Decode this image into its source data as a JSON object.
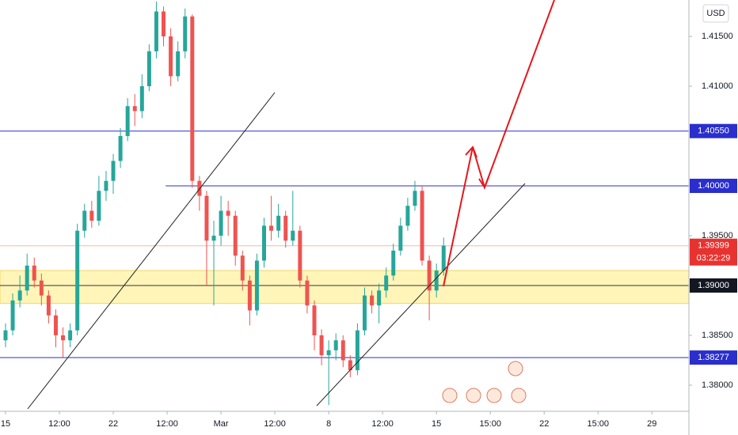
{
  "chart_data": {
    "type": "candlestick",
    "currency": "USD",
    "up_color": "#26a69a",
    "down_color": "#ef5350",
    "open": [
      1.3845,
      1.3855,
      1.3885,
      1.3895,
      1.392,
      1.3905,
      1.389,
      1.387,
      1.385,
      1.3845,
      1.3855,
      1.3955,
      1.3975,
      1.3965,
      1.3995,
      1.4005,
      1.4025,
      1.405,
      1.408,
      1.4075,
      1.41,
      1.4135,
      1.4175,
      1.415,
      1.411,
      1.4135,
      1.417,
      1.4005,
      1.399,
      1.3945,
      1.395,
      1.3975,
      1.397,
      1.393,
      1.3905,
      1.3875,
      1.3925,
      1.396,
      1.3955,
      1.397,
      1.3945,
      1.3955,
      1.3905,
      1.388,
      1.385,
      1.383,
      1.3835,
      1.3845,
      1.3825,
      1.3815,
      1.3855,
      1.389,
      1.388,
      1.3895,
      1.391,
      1.3935,
      1.396,
      1.398,
      1.3995,
      1.3925,
      1.3895,
      1.3915
    ],
    "high": [
      1.3862,
      1.3892,
      1.391,
      1.3932,
      1.3928,
      1.3912,
      1.3895,
      1.3876,
      1.3858,
      1.3862,
      1.3962,
      1.3982,
      1.3985,
      1.401,
      1.4015,
      1.4032,
      1.4058,
      1.4088,
      1.4092,
      1.4112,
      1.4142,
      1.4185,
      1.418,
      1.4158,
      1.4145,
      1.4178,
      1.4172,
      1.401,
      1.3995,
      1.3965,
      1.399,
      1.3985,
      1.3975,
      1.3935,
      1.391,
      1.3932,
      1.3968,
      1.399,
      1.3982,
      1.3975,
      1.3995,
      1.396,
      1.391,
      1.3885,
      1.3856,
      1.3845,
      1.3852,
      1.385,
      1.383,
      1.3862,
      1.3898,
      1.3895,
      1.3902,
      1.3918,
      1.3942,
      1.3968,
      1.3988,
      1.4005,
      1.4,
      1.393,
      1.3922,
      1.3948
    ],
    "low": [
      1.3838,
      1.385,
      1.3878,
      1.389,
      1.3898,
      1.388,
      1.3862,
      1.3838,
      1.3828,
      1.3838,
      1.385,
      1.3948,
      1.3958,
      1.396,
      1.3985,
      1.3992,
      1.4018,
      1.4045,
      1.406,
      1.4068,
      1.4095,
      1.4128,
      1.414,
      1.41,
      1.4105,
      1.4128,
      1.3998,
      1.3975,
      1.39,
      1.388,
      1.394,
      1.395,
      1.392,
      1.3895,
      1.386,
      1.387,
      1.3918,
      1.3945,
      1.3948,
      1.3938,
      1.394,
      1.3898,
      1.3872,
      1.3835,
      1.382,
      1.378,
      1.3825,
      1.3818,
      1.3808,
      1.381,
      1.385,
      1.3872,
      1.3862,
      1.3888,
      1.3905,
      1.393,
      1.3955,
      1.3975,
      1.392,
      1.3865,
      1.3888,
      1.391
    ],
    "close": [
      1.3855,
      1.3885,
      1.3895,
      1.392,
      1.3905,
      1.389,
      1.387,
      1.385,
      1.3845,
      1.3855,
      1.3955,
      1.3975,
      1.3965,
      1.3995,
      1.4005,
      1.4025,
      1.405,
      1.408,
      1.4075,
      1.41,
      1.4135,
      1.4175,
      1.415,
      1.411,
      1.4135,
      1.417,
      1.4005,
      1.399,
      1.3945,
      1.395,
      1.3975,
      1.397,
      1.393,
      1.3905,
      1.3875,
      1.3925,
      1.396,
      1.3955,
      1.397,
      1.3945,
      1.3955,
      1.3905,
      1.388,
      1.385,
      1.383,
      1.3835,
      1.3845,
      1.3825,
      1.3815,
      1.3855,
      1.389,
      1.388,
      1.3895,
      1.391,
      1.3935,
      1.396,
      1.398,
      1.3995,
      1.3925,
      1.3895,
      1.3915,
      1.394
    ],
    "xlim": [
      -0.77,
      95.15
    ],
    "xticks": [
      {
        "value": 0,
        "label": "15"
      },
      {
        "value": 7.5,
        "label": "12:00"
      },
      {
        "value": 15,
        "label": "22"
      },
      {
        "value": 22.5,
        "label": "12:00"
      },
      {
        "value": 30,
        "label": "Mar"
      },
      {
        "value": 37.5,
        "label": "12:00"
      },
      {
        "value": 45,
        "label": "8"
      },
      {
        "value": 52.5,
        "label": "12:00"
      },
      {
        "value": 60,
        "label": "15"
      },
      {
        "value": 67.5,
        "label": "15:00"
      },
      {
        "value": 75,
        "label": "22"
      },
      {
        "value": 82.5,
        "label": "15:00"
      },
      {
        "value": 90,
        "label": "29"
      }
    ],
    "ylim": [
      1.37738,
      1.41865
    ],
    "yticks": [
      {
        "value": 1.38,
        "label": "1.38000"
      },
      {
        "value": 1.385,
        "label": "1.38500"
      },
      {
        "value": 1.395,
        "label": "1.39500"
      },
      {
        "value": 1.41,
        "label": "1.41000"
      },
      {
        "value": 1.415,
        "label": "1.41500"
      }
    ],
    "zone": [
      1.3882,
      1.3915
    ],
    "zone_color": "#fff5b8",
    "price_lines": [
      {
        "value": 1.4055,
        "label": "1.40550",
        "color": "#2a2ecc",
        "box": "#2a2ecc",
        "from_x": -0.77
      },
      {
        "value": 1.4,
        "label": "1.40000",
        "color": "#2a2ecc",
        "box": "#2a2ecc",
        "from_x": 22.3
      },
      {
        "value": 1.39399,
        "label": "1.39399",
        "color": "#f5b8a8",
        "box": "#e8322f",
        "from_x": -0.77,
        "countdown": "03:22:29"
      },
      {
        "value": 1.39,
        "label": "1.39000",
        "color": "#333333",
        "box": "#131722",
        "from_x": -0.77
      },
      {
        "value": 1.38277,
        "label": "1.38277",
        "color": "#2a2ecc",
        "box": "#2a2ecc",
        "from_x": -0.77
      }
    ]
  }
}
